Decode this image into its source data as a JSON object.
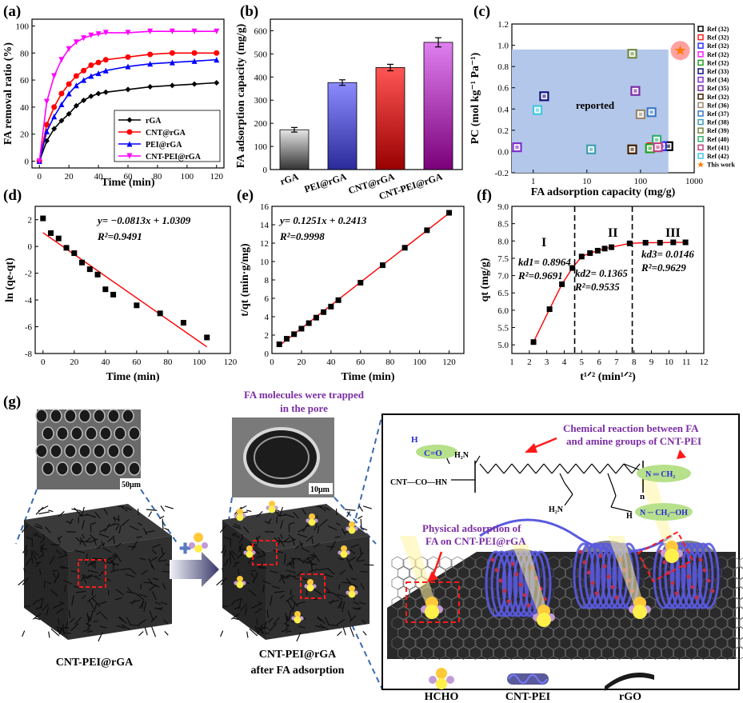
{
  "panels": {
    "a": {
      "label": "(a)",
      "chart_data": {
        "type": "line",
        "xlabel": "Time (min)",
        "ylabel": "FA removal ratio (%)",
        "xlim": [
          -5,
          125
        ],
        "ylim": [
          -5,
          105
        ],
        "xticks": [
          0,
          20,
          40,
          60,
          80,
          100,
          120
        ],
        "yticks": [
          0,
          20,
          40,
          60,
          80,
          100
        ],
        "legend_position": "bottom-right",
        "series": [
          {
            "name": "rGA",
            "color": "#000000",
            "marker": "diamond",
            "x": [
              0,
              5,
              10,
              15,
              20,
              25,
              30,
              35,
              40,
              45,
              60,
              75,
              90,
              105,
              120
            ],
            "y": [
              0,
              15,
              24,
              30,
              35,
              41,
              45,
              48,
              50,
              51,
              53,
              55,
              56,
              57,
              58
            ]
          },
          {
            "name": "CNT@rGA",
            "color": "#ff0000",
            "marker": "circle",
            "x": [
              0,
              5,
              10,
              15,
              20,
              25,
              30,
              35,
              40,
              45,
              60,
              75,
              90,
              105,
              120
            ],
            "y": [
              0,
              27,
              40,
              50,
              57,
              63,
              67,
              71,
              73,
              75,
              77,
              79,
              80,
              80,
              80
            ]
          },
          {
            "name": "PEI@rGA",
            "color": "#0000ff",
            "marker": "triangle",
            "x": [
              0,
              5,
              10,
              15,
              20,
              25,
              30,
              35,
              40,
              45,
              60,
              75,
              90,
              105,
              120
            ],
            "y": [
              0,
              22,
              33,
              42,
              50,
              56,
              60,
              63,
              65,
              67,
              70,
              72,
              73,
              74,
              75
            ]
          },
          {
            "name": "CNT-PEI@rGA",
            "color": "#ff00ff",
            "marker": "triangle-down",
            "x": [
              0,
              5,
              10,
              15,
              20,
              25,
              30,
              35,
              40,
              45,
              60,
              75,
              90,
              105,
              120
            ],
            "y": [
              0,
              44,
              63,
              75,
              83,
              88,
              91,
              93,
              94,
              95,
              95,
              96,
              96,
              96,
              96
            ]
          }
        ]
      }
    },
    "b": {
      "label": "(b)",
      "chart_data": {
        "type": "bar",
        "ylabel": "FA adsorption capacity (mg/g)",
        "categories": [
          "rGA",
          "PEI@rGA",
          "CNT@rGA",
          "CNT-PEI@rGA"
        ],
        "values": [
          172,
          376,
          441,
          550
        ],
        "errors": [
          10,
          12,
          14,
          20
        ],
        "ylim": [
          0,
          650
        ],
        "yticks": [
          0,
          100,
          200,
          300,
          400,
          500,
          600
        ],
        "colors": [
          [
            "#e6e6e6",
            "#333333"
          ],
          [
            "#8c8cff",
            "#2a2a9a"
          ],
          [
            "#ff5555",
            "#990000"
          ],
          [
            "#e080f0",
            "#7a007a"
          ]
        ]
      }
    },
    "c": {
      "label": "(c)",
      "chart_data": {
        "type": "scatter",
        "xlabel": "FA adsorption capacity (mg/g)",
        "ylabel": "PC (mol kg⁻¹ Pa⁻¹)",
        "xscale": "log",
        "xlim": [
          0.4,
          1000
        ],
        "ylim": [
          -0.2,
          1.2
        ],
        "xticks": [
          1,
          10,
          100,
          1000
        ],
        "yticks": [
          -0.2,
          0.0,
          0.2,
          0.4,
          0.6,
          0.8,
          1.0,
          1.2
        ],
        "region_label": "reported",
        "region": {
          "x": [
            0.4,
            330
          ],
          "y": [
            -0.2,
            0.96
          ],
          "color": "#b3c7ea"
        },
        "legend_position": "right-outside",
        "points": [
          {
            "name": "Ref (32)",
            "color": "#000000",
            "x": 330,
            "y": 0.05
          },
          {
            "name": "Ref (32)",
            "color": "#ff2020",
            "x": 160,
            "y": 0.04
          },
          {
            "name": "Ref (32)",
            "color": "#3030ff",
            "x": 250,
            "y": 0.05
          },
          {
            "name": "Ref (32)",
            "color": "#ff20ff",
            "x": 210,
            "y": 0.05
          },
          {
            "name": "Ref (32)",
            "color": "#20a020",
            "x": 150,
            "y": 0.03
          },
          {
            "name": "Ref (33)",
            "color": "#101080",
            "x": 1.6,
            "y": 0.52
          },
          {
            "name": "Ref (34)",
            "color": "#8030d0",
            "x": 0.5,
            "y": 0.04
          },
          {
            "name": "Ref (35)",
            "color": "#7a2da4",
            "x": 80,
            "y": 0.57
          },
          {
            "name": "Ref (32)",
            "color": "#402000",
            "x": 70,
            "y": 0.02
          },
          {
            "name": "Ref (36)",
            "color": "#9a8a70",
            "x": 100,
            "y": 0.35
          },
          {
            "name": "Ref (37)",
            "color": "#3a78c8",
            "x": 160,
            "y": 0.37
          },
          {
            "name": "Ref (38)",
            "color": "#40a0b0",
            "x": 12,
            "y": 0.02
          },
          {
            "name": "Ref (39)",
            "color": "#708a40",
            "x": 70,
            "y": 0.92
          },
          {
            "name": "Ref (40)",
            "color": "#30b070",
            "x": 200,
            "y": 0.11
          },
          {
            "name": "Ref (41)",
            "color": "#c04080",
            "x": 210,
            "y": 0.04
          },
          {
            "name": "Ref (42)",
            "color": "#40c8e0",
            "x": 1.2,
            "y": 0.39
          },
          {
            "name": "This work",
            "color": "#ff7a00",
            "x": 550,
            "y": 0.95,
            "marker": "star"
          }
        ]
      }
    },
    "d": {
      "label": "(d)",
      "chart_data": {
        "type": "scatter",
        "xlabel": "Time (min)",
        "ylabel": "ln (qe-qt)",
        "xlim": [
          -5,
          120
        ],
        "ylim": [
          -8,
          3
        ],
        "xticks": [
          0,
          20,
          40,
          60,
          80,
          100,
          120
        ],
        "yticks": [
          -8,
          -6,
          -4,
          -2,
          0,
          2
        ],
        "x": [
          0,
          5,
          10,
          15,
          20,
          25,
          30,
          35,
          40,
          45,
          60,
          75,
          90,
          105
        ],
        "y": [
          2.1,
          1.0,
          0.6,
          -0.1,
          -0.5,
          -1.2,
          -1.7,
          -2.1,
          -3.2,
          -3.6,
          -4.4,
          -5.0,
          -5.7,
          -6.8
        ],
        "fit": {
          "slope": -0.0813,
          "intercept": 1.0309,
          "x": [
            0,
            105
          ]
        },
        "equation": "y= −0.0813x + 1.0309",
        "r2": "R²=0.9491"
      }
    },
    "e": {
      "label": "(e)",
      "chart_data": {
        "type": "scatter",
        "xlabel": "Time (min)",
        "ylabel": "t/qt (min·g/mg)",
        "xlim": [
          0,
          130
        ],
        "ylim": [
          0,
          16
        ],
        "xticks": [
          0,
          20,
          40,
          60,
          80,
          100,
          120
        ],
        "yticks": [
          0,
          2,
          4,
          6,
          8,
          10,
          12,
          14,
          16
        ],
        "x": [
          5,
          10,
          15,
          20,
          25,
          30,
          35,
          40,
          45,
          60,
          75,
          90,
          105,
          120
        ],
        "y": [
          1.0,
          1.6,
          2.1,
          2.7,
          3.3,
          3.9,
          4.5,
          5.1,
          5.8,
          7.7,
          9.6,
          11.5,
          13.4,
          15.3
        ],
        "fit": {
          "slope": 0.1251,
          "intercept": 0.2413,
          "x": [
            5,
            120
          ]
        },
        "equation": "y= 0.1251x + 0.2413",
        "r2": "R²=0.9998"
      }
    },
    "f": {
      "label": "(f)",
      "chart_data": {
        "type": "line",
        "xlabel": "t¹ᐟ² (min¹ᐟ²)",
        "ylabel": "qt (mg/g)",
        "xlim": [
          1,
          12
        ],
        "ylim": [
          4.75,
          9.0
        ],
        "xticks": [
          1,
          2,
          3,
          4,
          5,
          6,
          7,
          8,
          9,
          10,
          11,
          12
        ],
        "yticks": [
          5.0,
          5.5,
          6.0,
          6.5,
          7.0,
          7.5,
          8.0,
          8.5,
          9.0
        ],
        "x": [
          2.24,
          3.16,
          3.87,
          4.47,
          5.0,
          5.48,
          5.92,
          6.32,
          6.71,
          7.75,
          8.66,
          9.49,
          10.25,
          10.95
        ],
        "y": [
          5.08,
          6.03,
          6.75,
          7.22,
          7.55,
          7.65,
          7.72,
          7.78,
          7.82,
          7.93,
          7.95,
          7.95,
          7.96,
          7.96
        ],
        "dividers": [
          4.6,
          7.9
        ],
        "regions": [
          {
            "numeral": "I",
            "k": "kd1= 0.8964",
            "r2": "R²=0.9691"
          },
          {
            "numeral": "II",
            "k": "kd2= 0.1365",
            "r2": "R²=0.9535"
          },
          {
            "numeral": "III",
            "k": "kd3= 0.0146",
            "r2": "R²=0.9629"
          }
        ]
      }
    },
    "g": {
      "label": "(g)",
      "top_caption": "FA molecules were trapped",
      "top_caption2": "in the pore",
      "scale1": "50μm",
      "scale2": "10μm",
      "caption_left": "CNT-PEI@rGA",
      "caption_mid1": "CNT-PEI@rGA",
      "caption_mid2": "after FA adsorption",
      "reaction1": "Chemical reaction between FA",
      "reaction2": "and amine groups of CNT-PEI",
      "physical1": "Physical adsorption of",
      "physical2": "FA on CNT-PEI@rGA",
      "chem_prefix": "CNT—CO—HN",
      "subscript_n": "n",
      "legend": [
        "HCHO",
        "CNT-PEI",
        "rGO"
      ]
    }
  }
}
